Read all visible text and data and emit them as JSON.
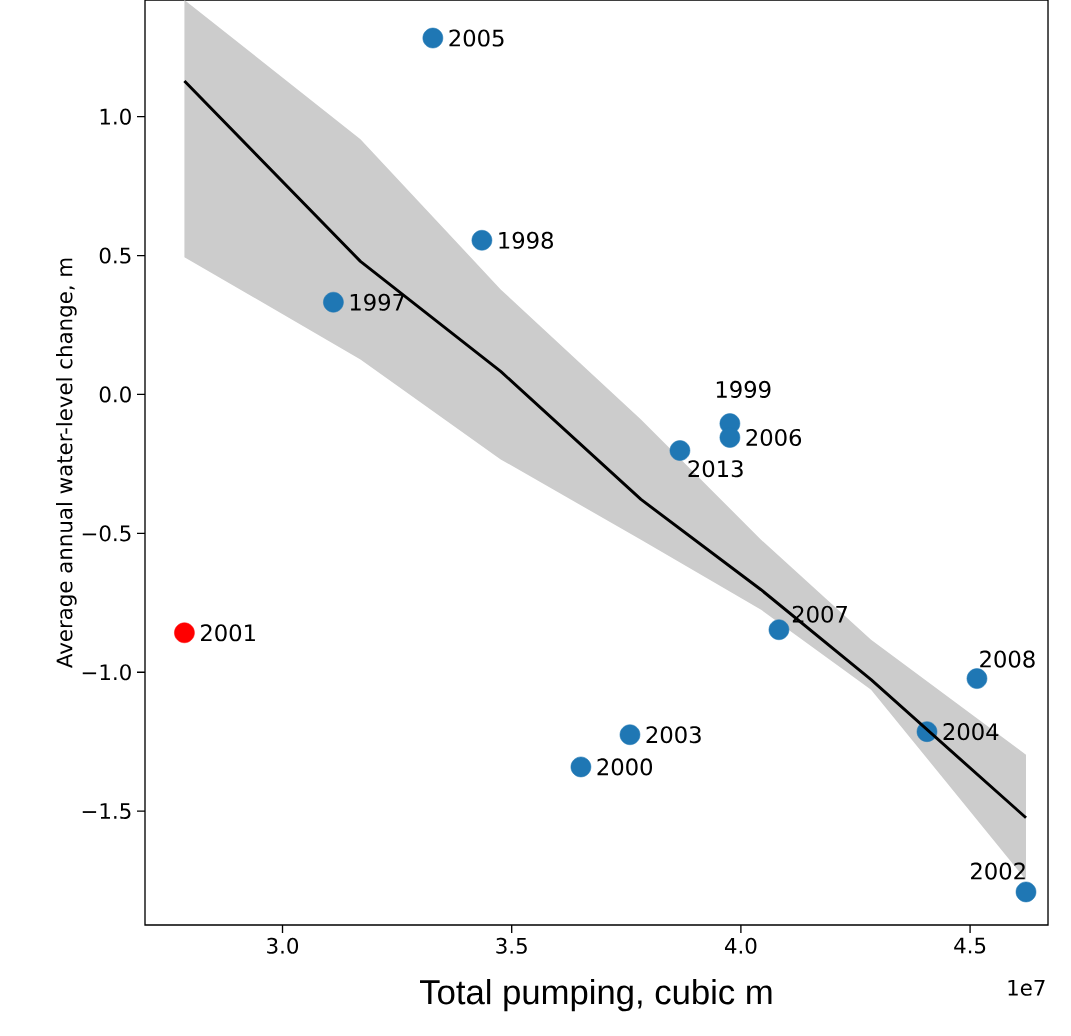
{
  "chart_data": {
    "type": "scatter",
    "xlabel": "Total pumping, cubic m",
    "ylabel": "Average annual water-level change, m",
    "xlim": [
      2.7,
      4.67
    ],
    "ylim": [
      -1.91,
      1.42
    ],
    "xticks": [
      {
        "value": 3.0,
        "label": "3.0"
      },
      {
        "value": 3.5,
        "label": "3.5"
      },
      {
        "value": 4.0,
        "label": "4.0"
      },
      {
        "value": 4.5,
        "label": "4.5"
      }
    ],
    "yticks": [
      {
        "value": 1.0,
        "label": "1.0"
      },
      {
        "value": 0.5,
        "label": "0.5"
      },
      {
        "value": 0.0,
        "label": "0.0"
      },
      {
        "value": -0.5,
        "label": "−0.5"
      },
      {
        "value": -1.0,
        "label": "−1.0"
      },
      {
        "value": -1.5,
        "label": "−1.5"
      }
    ],
    "grid": false,
    "marker": "circle",
    "series": [
      {
        "type": "scatter",
        "x": [
          3.328,
          3.435,
          3.111,
          3.976,
          3.976,
          3.867,
          2.786,
          4.083,
          4.515,
          4.406,
          3.758,
          3.651,
          4.622
        ],
        "values": [
          1.283,
          0.555,
          0.332,
          -0.105,
          -0.155,
          -0.202,
          -0.858,
          -0.847,
          -1.023,
          -1.214,
          -1.225,
          -1.341,
          -1.791
        ],
        "colors": [
          "#1f77b4",
          "#1f77b4",
          "#1f77b4",
          "#1f77b4",
          "#1f77b4",
          "#1f77b4",
          "#ff0000",
          "#1f77b4",
          "#1f77b4",
          "#1f77b4",
          "#1f77b4",
          "#1f77b4",
          "#1f77b4"
        ]
      },
      {
        "type": "line",
        "color": "#000000",
        "marker": "none",
        "x": [
          2.786,
          3.17,
          3.476,
          3.782,
          4.044,
          4.284,
          4.622
        ],
        "values": [
          1.128,
          0.479,
          0.083,
          -0.378,
          -0.703,
          -1.027,
          -1.524
        ],
        "lower": [
          0.494,
          0.126,
          -0.234,
          -0.523,
          -0.775,
          -1.063,
          -1.748
        ],
        "upper": [
          1.42,
          0.919,
          0.378,
          -0.09,
          -0.523,
          -0.883,
          -1.297
        ]
      }
    ],
    "annotations": [
      {
        "text": "2005",
        "x": 3.328,
        "y": 1.283
      },
      {
        "text": "1998",
        "x": 3.435,
        "y": 0.555
      },
      {
        "text": "1997",
        "x": 3.111,
        "y": 0.332
      },
      {
        "text": "1999",
        "x": 3.976,
        "y": -0.105
      },
      {
        "text": "2006",
        "x": 3.976,
        "y": -0.155
      },
      {
        "text": "2013",
        "x": 3.867,
        "y": -0.202
      },
      {
        "text": "2001",
        "x": 2.786,
        "y": -0.858
      },
      {
        "text": "2007",
        "x": 4.083,
        "y": -0.847
      },
      {
        "text": "2008",
        "x": 4.515,
        "y": -1.023
      },
      {
        "text": "2004",
        "x": 4.406,
        "y": -1.214
      },
      {
        "text": "2003",
        "x": 3.758,
        "y": -1.225
      },
      {
        "text": "2000",
        "x": 3.651,
        "y": -1.341
      },
      {
        "text": "2002",
        "x": 4.622,
        "y": -1.791
      },
      "1e7"
    ]
  }
}
